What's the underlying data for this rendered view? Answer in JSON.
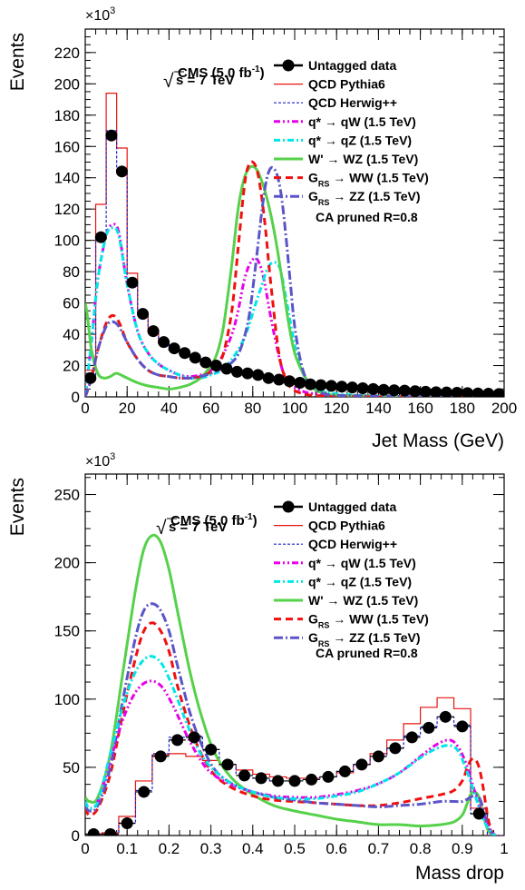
{
  "colors": {
    "data": "#000000",
    "pythia": "#e8140f",
    "herwig": "#1e22c8",
    "qW": "#e800e8",
    "qZ": "#00e6e6",
    "WZ": "#55d14a",
    "WW": "#f01010",
    "ZZ": "#5a55c8"
  },
  "legend_items": [
    {
      "key": "data",
      "label": "Untagged data"
    },
    {
      "key": "pythia",
      "label": "QCD Pythia6"
    },
    {
      "key": "herwig",
      "label": "QCD Herwig++"
    },
    {
      "key": "qW",
      "label": "q* → qW (1.5 TeV)"
    },
    {
      "key": "qZ",
      "label": "q* → qZ (1.5 TeV)"
    },
    {
      "key": "WZ",
      "label": "W' → WZ (1.5 TeV)"
    },
    {
      "key": "WW",
      "label": "G_RS → WW (1.5 TeV)"
    },
    {
      "key": "ZZ",
      "label": "G_RS → ZZ (1.5 TeV)"
    }
  ],
  "chart_data": [
    {
      "type": "line",
      "panel": "top",
      "multiplier": "×10",
      "multiplier_exp": "3",
      "cms_label": "CMS (5.0 fb",
      "cms_sup": "-1",
      "cms_close": ")",
      "energy_label": "s = 7 TeV",
      "sqrt_symbol": "√",
      "algo_label": "CA pruned R=0.8",
      "xlabel": "Jet Mass (GeV)",
      "ylabel": "Events",
      "xlim": [
        0,
        200
      ],
      "ylim": [
        0,
        235
      ],
      "xticks": [
        0,
        20,
        40,
        60,
        80,
        100,
        120,
        140,
        160,
        180,
        200
      ],
      "yticks": [
        0,
        20,
        40,
        60,
        80,
        100,
        120,
        140,
        160,
        180,
        200,
        220
      ],
      "bin_edges": [
        0,
        5,
        10,
        15,
        20,
        25,
        30,
        35,
        40,
        45,
        50,
        55,
        60,
        65,
        70,
        75,
        80,
        85,
        90,
        95,
        100,
        105,
        110,
        115,
        120,
        125,
        130,
        135,
        140,
        145,
        150,
        155,
        160,
        165,
        170,
        175,
        180,
        185,
        190,
        195,
        200
      ],
      "data_x": [
        2.5,
        7.5,
        12.5,
        17.5,
        22.5,
        27.5,
        32.5,
        37.5,
        42.5,
        47.5,
        52.5,
        57.5,
        62.5,
        67.5,
        72.5,
        77.5,
        82.5,
        87.5,
        92.5,
        97.5,
        102.5,
        107.5,
        112.5,
        117.5,
        122.5,
        127.5,
        132.5,
        137.5,
        142.5,
        147.5,
        152.5,
        157.5,
        162.5,
        167.5,
        172.5,
        177.5,
        182.5,
        187.5,
        192.5,
        197.5
      ],
      "data_y": [
        12,
        102,
        167,
        144,
        73,
        53,
        42,
        35,
        31,
        28,
        25,
        22,
        20,
        18,
        16,
        15,
        14,
        12,
        11,
        10,
        9,
        8,
        7.5,
        7,
        6.5,
        6,
        5.5,
        5,
        4.5,
        4.2,
        4,
        3.6,
        3.3,
        3,
        2.8,
        2.6,
        2.4,
        2.2,
        2,
        1.8
      ],
      "pythia_hist": [
        17,
        123,
        194,
        159,
        79,
        54,
        42,
        35,
        30,
        27,
        24,
        21,
        19,
        17,
        16,
        14,
        13,
        12,
        11,
        10,
        9,
        8,
        7.5,
        7,
        6.5,
        6,
        5.5,
        5,
        4.5,
        4.2,
        4,
        3.6,
        3.3,
        3,
        2.8,
        2.6,
        2.4,
        2.2,
        2,
        1.8
      ],
      "herwig_hist": [
        13,
        101,
        170,
        143,
        72,
        52,
        41,
        34,
        30,
        27,
        24,
        21,
        19,
        17,
        16,
        14,
        13,
        12,
        11,
        10,
        9,
        8,
        7.5,
        7,
        6.5,
        6,
        5.5,
        5,
        4.5,
        4.2,
        4,
        3.6,
        3.3,
        3,
        2.8,
        2.6,
        2.4,
        2.2,
        2,
        1.8
      ],
      "series": [
        {
          "key": "qW",
          "x": [
            0,
            3,
            6,
            10,
            13,
            16,
            20,
            25,
            30,
            35,
            40,
            45,
            50,
            55,
            60,
            65,
            70,
            73,
            76,
            79,
            82,
            85,
            88,
            91,
            94,
            97,
            100,
            105,
            110,
            120,
            140,
            160,
            200
          ],
          "values": [
            0,
            35,
            75,
            103,
            110,
            105,
            72,
            42,
            28,
            21,
            17,
            14,
            13,
            14,
            17,
            25,
            40,
            55,
            75,
            86,
            88,
            77,
            55,
            35,
            18,
            10,
            6,
            3,
            2,
            1,
            0.5,
            0,
            0
          ]
        },
        {
          "key": "qZ",
          "x": [
            0,
            3,
            6,
            10,
            13,
            16,
            20,
            25,
            30,
            35,
            40,
            45,
            50,
            55,
            60,
            65,
            70,
            75,
            78,
            81,
            84,
            87,
            90,
            93,
            96,
            99,
            102,
            106,
            110,
            120,
            140,
            160,
            200
          ],
          "values": [
            0,
            35,
            75,
            103,
            108,
            103,
            72,
            42,
            28,
            21,
            17,
            14,
            12,
            12,
            14,
            17,
            24,
            35,
            45,
            58,
            70,
            82,
            86,
            82,
            62,
            40,
            22,
            10,
            5,
            2,
            0.5,
            0,
            0
          ]
        },
        {
          "key": "WZ",
          "x": [
            0,
            1,
            3,
            6,
            9,
            12,
            15,
            20,
            25,
            30,
            35,
            40,
            45,
            50,
            55,
            60,
            63,
            66,
            70,
            73,
            76,
            79,
            82,
            85,
            88,
            91,
            94,
            97,
            100,
            104,
            108,
            112,
            120,
            140,
            160,
            200
          ],
          "values": [
            60,
            52,
            30,
            15,
            12,
            13,
            15,
            12,
            9,
            7,
            6,
            5,
            6,
            8,
            12,
            20,
            28,
            45,
            85,
            120,
            140,
            147,
            145,
            135,
            120,
            100,
            75,
            48,
            28,
            15,
            7,
            3,
            1,
            0.5,
            0,
            0
          ]
        },
        {
          "key": "WW",
          "x": [
            0,
            3,
            6,
            10,
            13,
            16,
            20,
            25,
            30,
            35,
            40,
            45,
            50,
            55,
            60,
            63,
            66,
            70,
            73,
            76,
            78,
            80,
            82,
            84,
            86,
            88,
            90,
            92,
            94,
            97,
            100,
            104,
            108,
            115,
            120,
            140,
            160,
            200
          ],
          "values": [
            0,
            12,
            30,
            47,
            52,
            48,
            35,
            24,
            17,
            14,
            13,
            12,
            12,
            13,
            16,
            20,
            28,
            55,
            95,
            135,
            148,
            150,
            145,
            130,
            108,
            80,
            55,
            32,
            18,
            8,
            4,
            2,
            1,
            0.5,
            0,
            0,
            0,
            0
          ]
        },
        {
          "key": "ZZ",
          "x": [
            0,
            3,
            6,
            10,
            13,
            16,
            20,
            25,
            30,
            35,
            40,
            45,
            50,
            55,
            60,
            65,
            70,
            74,
            78,
            81,
            84,
            86,
            88,
            90,
            92,
            94,
            96,
            98,
            100,
            103,
            106,
            110,
            114,
            120,
            140,
            160,
            200
          ],
          "values": [
            0,
            12,
            30,
            45,
            48,
            45,
            35,
            24,
            17,
            14,
            13,
            12,
            12,
            13,
            15,
            18,
            22,
            30,
            50,
            80,
            115,
            135,
            145,
            146,
            140,
            125,
            100,
            72,
            45,
            22,
            10,
            5,
            2,
            1,
            0.5,
            0,
            0
          ]
        }
      ]
    },
    {
      "type": "line",
      "panel": "bottom",
      "multiplier": "×10",
      "multiplier_exp": "3",
      "cms_label": "CMS (5.0 fb",
      "cms_sup": "-1",
      "cms_close": ")",
      "energy_label": "s = 7 TeV",
      "sqrt_symbol": "√",
      "algo_label": "CA pruned R=0.8",
      "xlabel": "Mass drop",
      "ylabel": "Events",
      "xlim": [
        0,
        1
      ],
      "ylim": [
        0,
        265
      ],
      "xticks": [
        0,
        0.1,
        0.2,
        0.3,
        0.4,
        0.5,
        0.6,
        0.7,
        0.8,
        0.9,
        1
      ],
      "xtick_labels": [
        "0",
        "0.1",
        "0.2",
        "0.3",
        "0.4",
        "0.5",
        "0.6",
        "0.7",
        "0.8",
        "0.9",
        "1"
      ],
      "yticks": [
        0,
        50,
        100,
        150,
        200,
        250
      ],
      "bin_edges": [
        0,
        0.04,
        0.08,
        0.12,
        0.16,
        0.2,
        0.24,
        0.28,
        0.32,
        0.36,
        0.4,
        0.44,
        0.48,
        0.52,
        0.56,
        0.6,
        0.64,
        0.68,
        0.72,
        0.76,
        0.8,
        0.84,
        0.88,
        0.92,
        0.96,
        1.0
      ],
      "data_x": [
        0.02,
        0.06,
        0.1,
        0.14,
        0.18,
        0.22,
        0.26,
        0.3,
        0.34,
        0.38,
        0.42,
        0.46,
        0.5,
        0.54,
        0.58,
        0.62,
        0.66,
        0.7,
        0.74,
        0.78,
        0.82,
        0.86,
        0.9,
        0.94
      ],
      "data_y": [
        1,
        1,
        9,
        32,
        58,
        70,
        72,
        63,
        52,
        44,
        42,
        40,
        40,
        41,
        43,
        47,
        52,
        58,
        64,
        72,
        79,
        87,
        80,
        16
      ],
      "pythia_hist": [
        1,
        2,
        14,
        40,
        59,
        60,
        58,
        55,
        52,
        48,
        45,
        43,
        42,
        42,
        43,
        46,
        52,
        60,
        70,
        82,
        94,
        101,
        93,
        20,
        0
      ],
      "herwig_hist": [
        1,
        1,
        9,
        33,
        60,
        72,
        73,
        63,
        52,
        44,
        42,
        40,
        40,
        41,
        43,
        47,
        52,
        58,
        64,
        73,
        80,
        87,
        81,
        16,
        0
      ],
      "series": [
        {
          "key": "WZ",
          "x": [
            0,
            0.01,
            0.03,
            0.06,
            0.09,
            0.12,
            0.14,
            0.16,
            0.18,
            0.2,
            0.22,
            0.25,
            0.28,
            0.31,
            0.35,
            0.4,
            0.45,
            0.5,
            0.55,
            0.6,
            0.65,
            0.7,
            0.75,
            0.8,
            0.85,
            0.88,
            0.9,
            0.91,
            0.92,
            0.93,
            0.94,
            0.95,
            0.96,
            0.97,
            0.98
          ],
          "values": [
            28,
            25,
            28,
            60,
            120,
            180,
            210,
            220,
            215,
            195,
            165,
            120,
            85,
            60,
            42,
            30,
            22,
            18,
            15,
            12,
            10,
            8,
            8,
            7,
            8,
            10,
            15,
            22,
            30,
            32,
            28,
            15,
            5,
            1,
            0
          ]
        },
        {
          "key": "WW",
          "x": [
            0,
            0.01,
            0.03,
            0.06,
            0.09,
            0.12,
            0.14,
            0.16,
            0.18,
            0.2,
            0.22,
            0.25,
            0.28,
            0.31,
            0.35,
            0.4,
            0.45,
            0.5,
            0.55,
            0.6,
            0.65,
            0.7,
            0.75,
            0.8,
            0.85,
            0.88,
            0.9,
            0.91,
            0.92,
            0.93,
            0.94,
            0.95,
            0.96,
            0.97,
            0.98
          ],
          "values": [
            20,
            15,
            20,
            45,
            90,
            130,
            150,
            156,
            150,
            135,
            110,
            80,
            58,
            44,
            35,
            29,
            26,
            25,
            24,
            23,
            22,
            22,
            24,
            27,
            30,
            33,
            40,
            48,
            55,
            56,
            50,
            35,
            15,
            3,
            0
          ]
        },
        {
          "key": "ZZ",
          "x": [
            0,
            0.01,
            0.03,
            0.06,
            0.09,
            0.12,
            0.14,
            0.16,
            0.18,
            0.2,
            0.22,
            0.25,
            0.28,
            0.31,
            0.35,
            0.4,
            0.45,
            0.5,
            0.55,
            0.6,
            0.65,
            0.7,
            0.75,
            0.8,
            0.85,
            0.88,
            0.9,
            0.92,
            0.93,
            0.94,
            0.95,
            0.96,
            0.97,
            0.98
          ],
          "values": [
            22,
            18,
            22,
            50,
            100,
            145,
            165,
            170,
            165,
            150,
            125,
            90,
            65,
            48,
            38,
            32,
            28,
            26,
            24,
            23,
            22,
            21,
            22,
            23,
            25,
            25,
            25,
            28,
            30,
            28,
            20,
            8,
            2,
            0
          ]
        },
        {
          "key": "qW",
          "x": [
            0,
            0.01,
            0.03,
            0.06,
            0.09,
            0.12,
            0.15,
            0.18,
            0.21,
            0.24,
            0.27,
            0.3,
            0.35,
            0.4,
            0.45,
            0.5,
            0.55,
            0.6,
            0.65,
            0.7,
            0.75,
            0.8,
            0.84,
            0.87,
            0.89,
            0.91,
            0.93,
            0.95,
            0.97,
            0.98
          ],
          "values": [
            25,
            20,
            25,
            55,
            85,
            105,
            113,
            110,
            95,
            75,
            58,
            46,
            37,
            32,
            29,
            28,
            28,
            30,
            33,
            38,
            46,
            58,
            67,
            70,
            65,
            52,
            32,
            14,
            3,
            0
          ]
        },
        {
          "key": "qZ",
          "x": [
            0,
            0.01,
            0.03,
            0.06,
            0.09,
            0.12,
            0.15,
            0.18,
            0.21,
            0.24,
            0.27,
            0.3,
            0.35,
            0.4,
            0.45,
            0.5,
            0.55,
            0.6,
            0.65,
            0.7,
            0.75,
            0.8,
            0.84,
            0.87,
            0.89,
            0.91,
            0.93,
            0.95,
            0.97,
            0.98
          ],
          "values": [
            25,
            20,
            25,
            60,
            95,
            120,
            131,
            127,
            108,
            84,
            63,
            50,
            38,
            32,
            28,
            27,
            27,
            29,
            32,
            38,
            46,
            57,
            64,
            66,
            62,
            48,
            30,
            12,
            2,
            0
          ]
        }
      ]
    }
  ]
}
